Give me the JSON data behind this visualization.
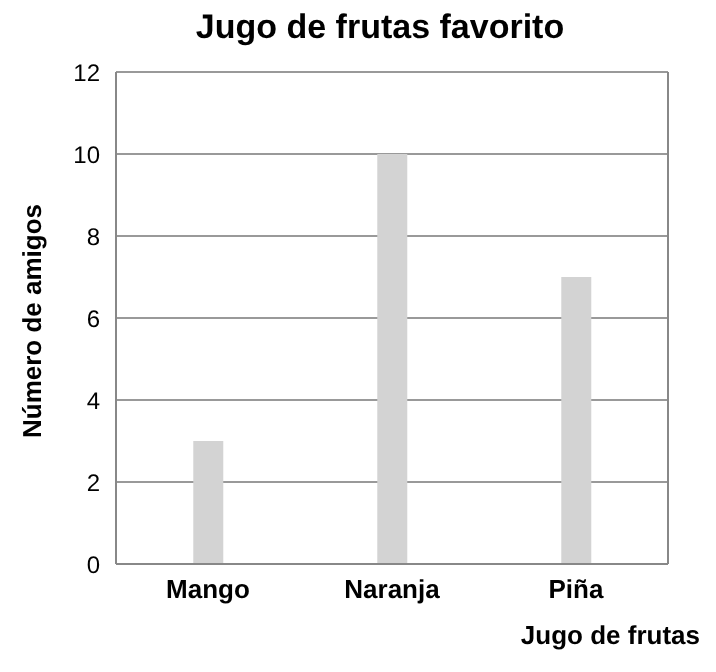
{
  "chart_data": {
    "type": "bar",
    "title": "Jugo de frutas favorito",
    "xlabel": "Jugo de frutas",
    "ylabel": "Número de amigos",
    "categories": [
      "Mango",
      "Naranja",
      "Piña"
    ],
    "values": [
      3,
      10,
      7
    ],
    "color": "#d3d3d3",
    "ylim": [
      0,
      12
    ],
    "yticks": [
      0,
      2,
      4,
      6,
      8,
      10,
      12
    ],
    "grid": "y"
  }
}
